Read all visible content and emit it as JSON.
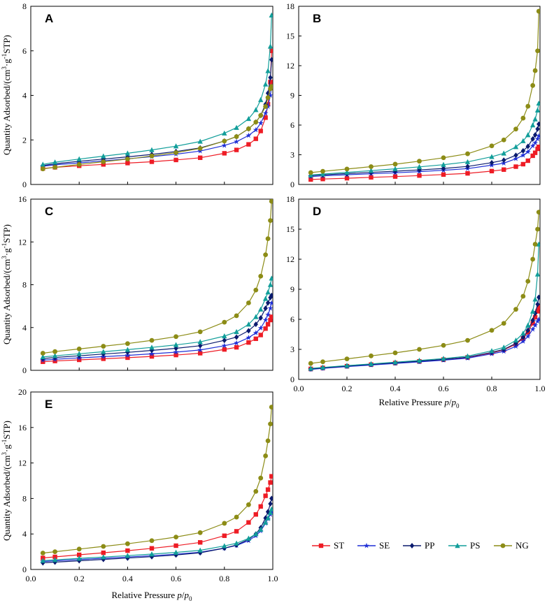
{
  "figure_title": "",
  "colors": {
    "ST": "#ee1c25",
    "SE": "#1f2fd6",
    "PP": "#0a1a6e",
    "PS": "#129e9a",
    "NG": "#8c8c16"
  },
  "markers": {
    "ST": "square",
    "SE": "star",
    "PP": "diamond",
    "PS": "triangle",
    "NG": "circle"
  },
  "legend": {
    "items": [
      "ST",
      "SE",
      "PP",
      "PS",
      "NG"
    ]
  },
  "x_axis_label": {
    "main": "Relative Pressure ",
    "var_p": "p",
    "slash": "/",
    "var_p0": "p",
    "sub0": "0"
  },
  "y_axis_label": {
    "prefix": "Quantity Adsorbed/(cm",
    "sup3": "3",
    "dot": "·g",
    "supm1": "-1",
    "suffix": "STP)"
  },
  "chart_data": [
    {
      "panel": "A",
      "type": "line",
      "ylim": [
        0,
        8
      ],
      "yticks": [
        "0",
        "2",
        "4",
        "6",
        "8"
      ],
      "xlim": [
        0,
        1
      ],
      "xticks": [
        "0.0",
        "0.2",
        "0.4",
        "0.6",
        "0.8",
        "1.0"
      ],
      "show_xtick_labels": false,
      "show_xlabel": false,
      "x": [
        0.05,
        0.1,
        0.2,
        0.3,
        0.4,
        0.5,
        0.6,
        0.7,
        0.8,
        0.85,
        0.9,
        0.93,
        0.95,
        0.97,
        0.98,
        0.99,
        0.995
      ],
      "series": [
        {
          "name": "ST",
          "values": [
            0.72,
            0.77,
            0.84,
            0.9,
            0.96,
            1.02,
            1.1,
            1.2,
            1.4,
            1.55,
            1.8,
            2.05,
            2.4,
            3.0,
            3.6,
            4.6,
            6.0
          ]
        },
        {
          "name": "SE",
          "values": [
            0.82,
            0.88,
            0.97,
            1.06,
            1.15,
            1.25,
            1.36,
            1.5,
            1.75,
            1.92,
            2.2,
            2.45,
            2.75,
            3.2,
            3.5,
            4.0,
            4.4
          ]
        },
        {
          "name": "PP",
          "values": [
            0.85,
            0.93,
            1.04,
            1.14,
            1.24,
            1.35,
            1.48,
            1.64,
            1.95,
            2.15,
            2.5,
            2.8,
            3.1,
            3.6,
            4.1,
            4.8,
            5.6
          ]
        },
        {
          "name": "PS",
          "values": [
            0.9,
            1.0,
            1.14,
            1.27,
            1.4,
            1.55,
            1.72,
            1.93,
            2.3,
            2.55,
            2.95,
            3.35,
            3.8,
            4.5,
            5.1,
            6.2,
            7.6
          ]
        },
        {
          "name": "NG",
          "values": [
            0.7,
            0.77,
            0.9,
            1.02,
            1.14,
            1.28,
            1.43,
            1.62,
            1.95,
            2.15,
            2.5,
            2.8,
            3.1,
            3.5,
            3.9,
            4.3,
            4.4
          ]
        }
      ]
    },
    {
      "panel": "B",
      "type": "line",
      "ylim": [
        0,
        18
      ],
      "yticks": [
        "0",
        "3",
        "6",
        "9",
        "12",
        "15",
        "18"
      ],
      "xlim": [
        0,
        1
      ],
      "xticks": [
        "0.0",
        "0.2",
        "0.4",
        "0.6",
        "0.8",
        "1.0"
      ],
      "show_xtick_labels": false,
      "show_xlabel": false,
      "x": [
        0.05,
        0.1,
        0.2,
        0.3,
        0.4,
        0.5,
        0.6,
        0.7,
        0.8,
        0.85,
        0.9,
        0.93,
        0.95,
        0.97,
        0.98,
        0.99,
        0.995
      ],
      "series": [
        {
          "name": "ST",
          "values": [
            0.5,
            0.55,
            0.63,
            0.72,
            0.8,
            0.9,
            1.0,
            1.12,
            1.35,
            1.5,
            1.8,
            2.05,
            2.4,
            2.9,
            3.2,
            3.6,
            3.8
          ]
        },
        {
          "name": "SE",
          "values": [
            0.8,
            0.87,
            0.98,
            1.08,
            1.18,
            1.3,
            1.43,
            1.6,
            1.95,
            2.15,
            2.6,
            2.95,
            3.3,
            3.9,
            4.2,
            4.6,
            4.9
          ]
        },
        {
          "name": "PP",
          "values": [
            0.9,
            0.97,
            1.1,
            1.22,
            1.34,
            1.47,
            1.62,
            1.82,
            2.2,
            2.45,
            2.95,
            3.4,
            3.85,
            4.6,
            5.0,
            5.6,
            6.1
          ]
        },
        {
          "name": "PS",
          "values": [
            0.95,
            1.05,
            1.22,
            1.4,
            1.58,
            1.78,
            2.0,
            2.28,
            2.8,
            3.15,
            3.8,
            4.4,
            5.0,
            6.0,
            6.6,
            7.5,
            8.2
          ]
        },
        {
          "name": "NG",
          "values": [
            1.2,
            1.33,
            1.56,
            1.8,
            2.05,
            2.35,
            2.7,
            3.1,
            3.9,
            4.5,
            5.6,
            6.7,
            7.9,
            10.0,
            11.5,
            13.5,
            17.5
          ]
        }
      ]
    },
    {
      "panel": "C",
      "type": "line",
      "ylim": [
        0,
        16
      ],
      "yticks": [
        "0",
        "4",
        "8",
        "12",
        "16"
      ],
      "xlim": [
        0,
        1
      ],
      "xticks": [
        "0.0",
        "0.2",
        "0.4",
        "0.6",
        "0.8",
        "1.0"
      ],
      "show_xtick_labels": false,
      "show_xlabel": false,
      "x": [
        0.05,
        0.1,
        0.2,
        0.3,
        0.4,
        0.5,
        0.6,
        0.7,
        0.8,
        0.85,
        0.9,
        0.93,
        0.95,
        0.97,
        0.98,
        0.99,
        0.995
      ],
      "series": [
        {
          "name": "ST",
          "values": [
            0.8,
            0.87,
            0.98,
            1.08,
            1.18,
            1.3,
            1.43,
            1.6,
            1.95,
            2.15,
            2.6,
            2.95,
            3.3,
            3.9,
            4.3,
            4.7,
            5.0
          ]
        },
        {
          "name": "SE",
          "values": [
            0.95,
            1.03,
            1.16,
            1.28,
            1.4,
            1.54,
            1.7,
            1.9,
            2.3,
            2.55,
            3.05,
            3.5,
            3.95,
            4.7,
            5.2,
            5.8,
            6.3
          ]
        },
        {
          "name": "PP",
          "values": [
            1.1,
            1.2,
            1.36,
            1.52,
            1.68,
            1.86,
            2.06,
            2.3,
            2.8,
            3.1,
            3.7,
            4.3,
            4.9,
            5.8,
            6.3,
            6.8,
            7.0
          ]
        },
        {
          "name": "PS",
          "values": [
            1.25,
            1.36,
            1.55,
            1.74,
            1.93,
            2.14,
            2.38,
            2.66,
            3.2,
            3.6,
            4.3,
            5.0,
            5.7,
            6.7,
            7.3,
            8.0,
            8.6
          ]
        },
        {
          "name": "NG",
          "values": [
            1.6,
            1.75,
            2.0,
            2.25,
            2.5,
            2.8,
            3.15,
            3.6,
            4.5,
            5.1,
            6.3,
            7.5,
            8.8,
            10.8,
            12.3,
            14.0,
            15.8
          ]
        }
      ]
    },
    {
      "panel": "D",
      "type": "line",
      "ylim": [
        0,
        18
      ],
      "yticks": [
        "0",
        "3",
        "6",
        "9",
        "12",
        "15",
        "18"
      ],
      "xlim": [
        0,
        1
      ],
      "xticks": [
        "0.0",
        "0.2",
        "0.4",
        "0.6",
        "0.8",
        "1.0"
      ],
      "show_xtick_labels": true,
      "show_xlabel": true,
      "x": [
        0.05,
        0.1,
        0.2,
        0.3,
        0.4,
        0.5,
        0.6,
        0.7,
        0.8,
        0.85,
        0.9,
        0.93,
        0.95,
        0.97,
        0.98,
        0.99,
        0.995
      ],
      "series": [
        {
          "name": "ST",
          "values": [
            1.05,
            1.15,
            1.32,
            1.48,
            1.64,
            1.8,
            1.98,
            2.2,
            2.65,
            2.95,
            3.5,
            4.1,
            4.7,
            5.6,
            6.2,
            6.8,
            7.2
          ]
        },
        {
          "name": "SE",
          "values": [
            1.0,
            1.1,
            1.28,
            1.44,
            1.6,
            1.75,
            1.92,
            2.12,
            2.55,
            2.8,
            3.3,
            3.8,
            4.3,
            5.0,
            5.4,
            5.8,
            6.0
          ]
        },
        {
          "name": "PP",
          "values": [
            1.05,
            1.15,
            1.33,
            1.5,
            1.66,
            1.82,
            2.0,
            2.22,
            2.7,
            3.0,
            3.6,
            4.2,
            4.9,
            5.9,
            6.6,
            7.5,
            8.2
          ]
        },
        {
          "name": "PS",
          "values": [
            1.1,
            1.2,
            1.38,
            1.55,
            1.72,
            1.89,
            2.08,
            2.32,
            2.85,
            3.2,
            3.9,
            4.6,
            5.4,
            6.8,
            8.0,
            10.5,
            13.5
          ]
        },
        {
          "name": "NG",
          "values": [
            1.6,
            1.76,
            2.05,
            2.35,
            2.65,
            3.0,
            3.4,
            3.9,
            4.9,
            5.6,
            7.0,
            8.3,
            9.8,
            12.0,
            13.5,
            15.0,
            16.7
          ]
        }
      ]
    },
    {
      "panel": "E",
      "type": "line",
      "ylim": [
        0,
        20
      ],
      "yticks": [
        "0",
        "4",
        "8",
        "12",
        "16",
        "20"
      ],
      "xlim": [
        0,
        1
      ],
      "xticks": [
        "0.0",
        "0.2",
        "0.4",
        "0.6",
        "0.8",
        "1.0"
      ],
      "show_xtick_labels": true,
      "show_xlabel": true,
      "x": [
        0.05,
        0.1,
        0.2,
        0.3,
        0.4,
        0.5,
        0.6,
        0.7,
        0.8,
        0.85,
        0.9,
        0.93,
        0.95,
        0.97,
        0.98,
        0.99,
        0.995
      ],
      "series": [
        {
          "name": "ST",
          "values": [
            1.3,
            1.42,
            1.65,
            1.88,
            2.12,
            2.38,
            2.68,
            3.05,
            3.8,
            4.3,
            5.3,
            6.2,
            7.1,
            8.3,
            9.0,
            9.8,
            10.5
          ]
        },
        {
          "name": "SE",
          "values": [
            0.9,
            0.98,
            1.12,
            1.26,
            1.4,
            1.55,
            1.72,
            1.94,
            2.4,
            2.7,
            3.25,
            3.8,
            4.35,
            5.2,
            5.7,
            6.2,
            6.5
          ]
        },
        {
          "name": "PP",
          "values": [
            0.75,
            0.83,
            0.98,
            1.13,
            1.28,
            1.44,
            1.63,
            1.88,
            2.4,
            2.75,
            3.4,
            4.0,
            4.7,
            5.8,
            6.5,
            7.4,
            8.0
          ]
        },
        {
          "name": "PS",
          "values": [
            1.0,
            1.09,
            1.25,
            1.4,
            1.56,
            1.73,
            1.92,
            2.16,
            2.65,
            2.95,
            3.5,
            4.0,
            4.5,
            5.3,
            5.8,
            6.4,
            6.8
          ]
        },
        {
          "name": "NG",
          "values": [
            1.85,
            2.0,
            2.3,
            2.6,
            2.9,
            3.25,
            3.65,
            4.15,
            5.2,
            5.9,
            7.3,
            8.8,
            10.3,
            12.8,
            14.5,
            16.4,
            18.3
          ]
        }
      ]
    }
  ]
}
